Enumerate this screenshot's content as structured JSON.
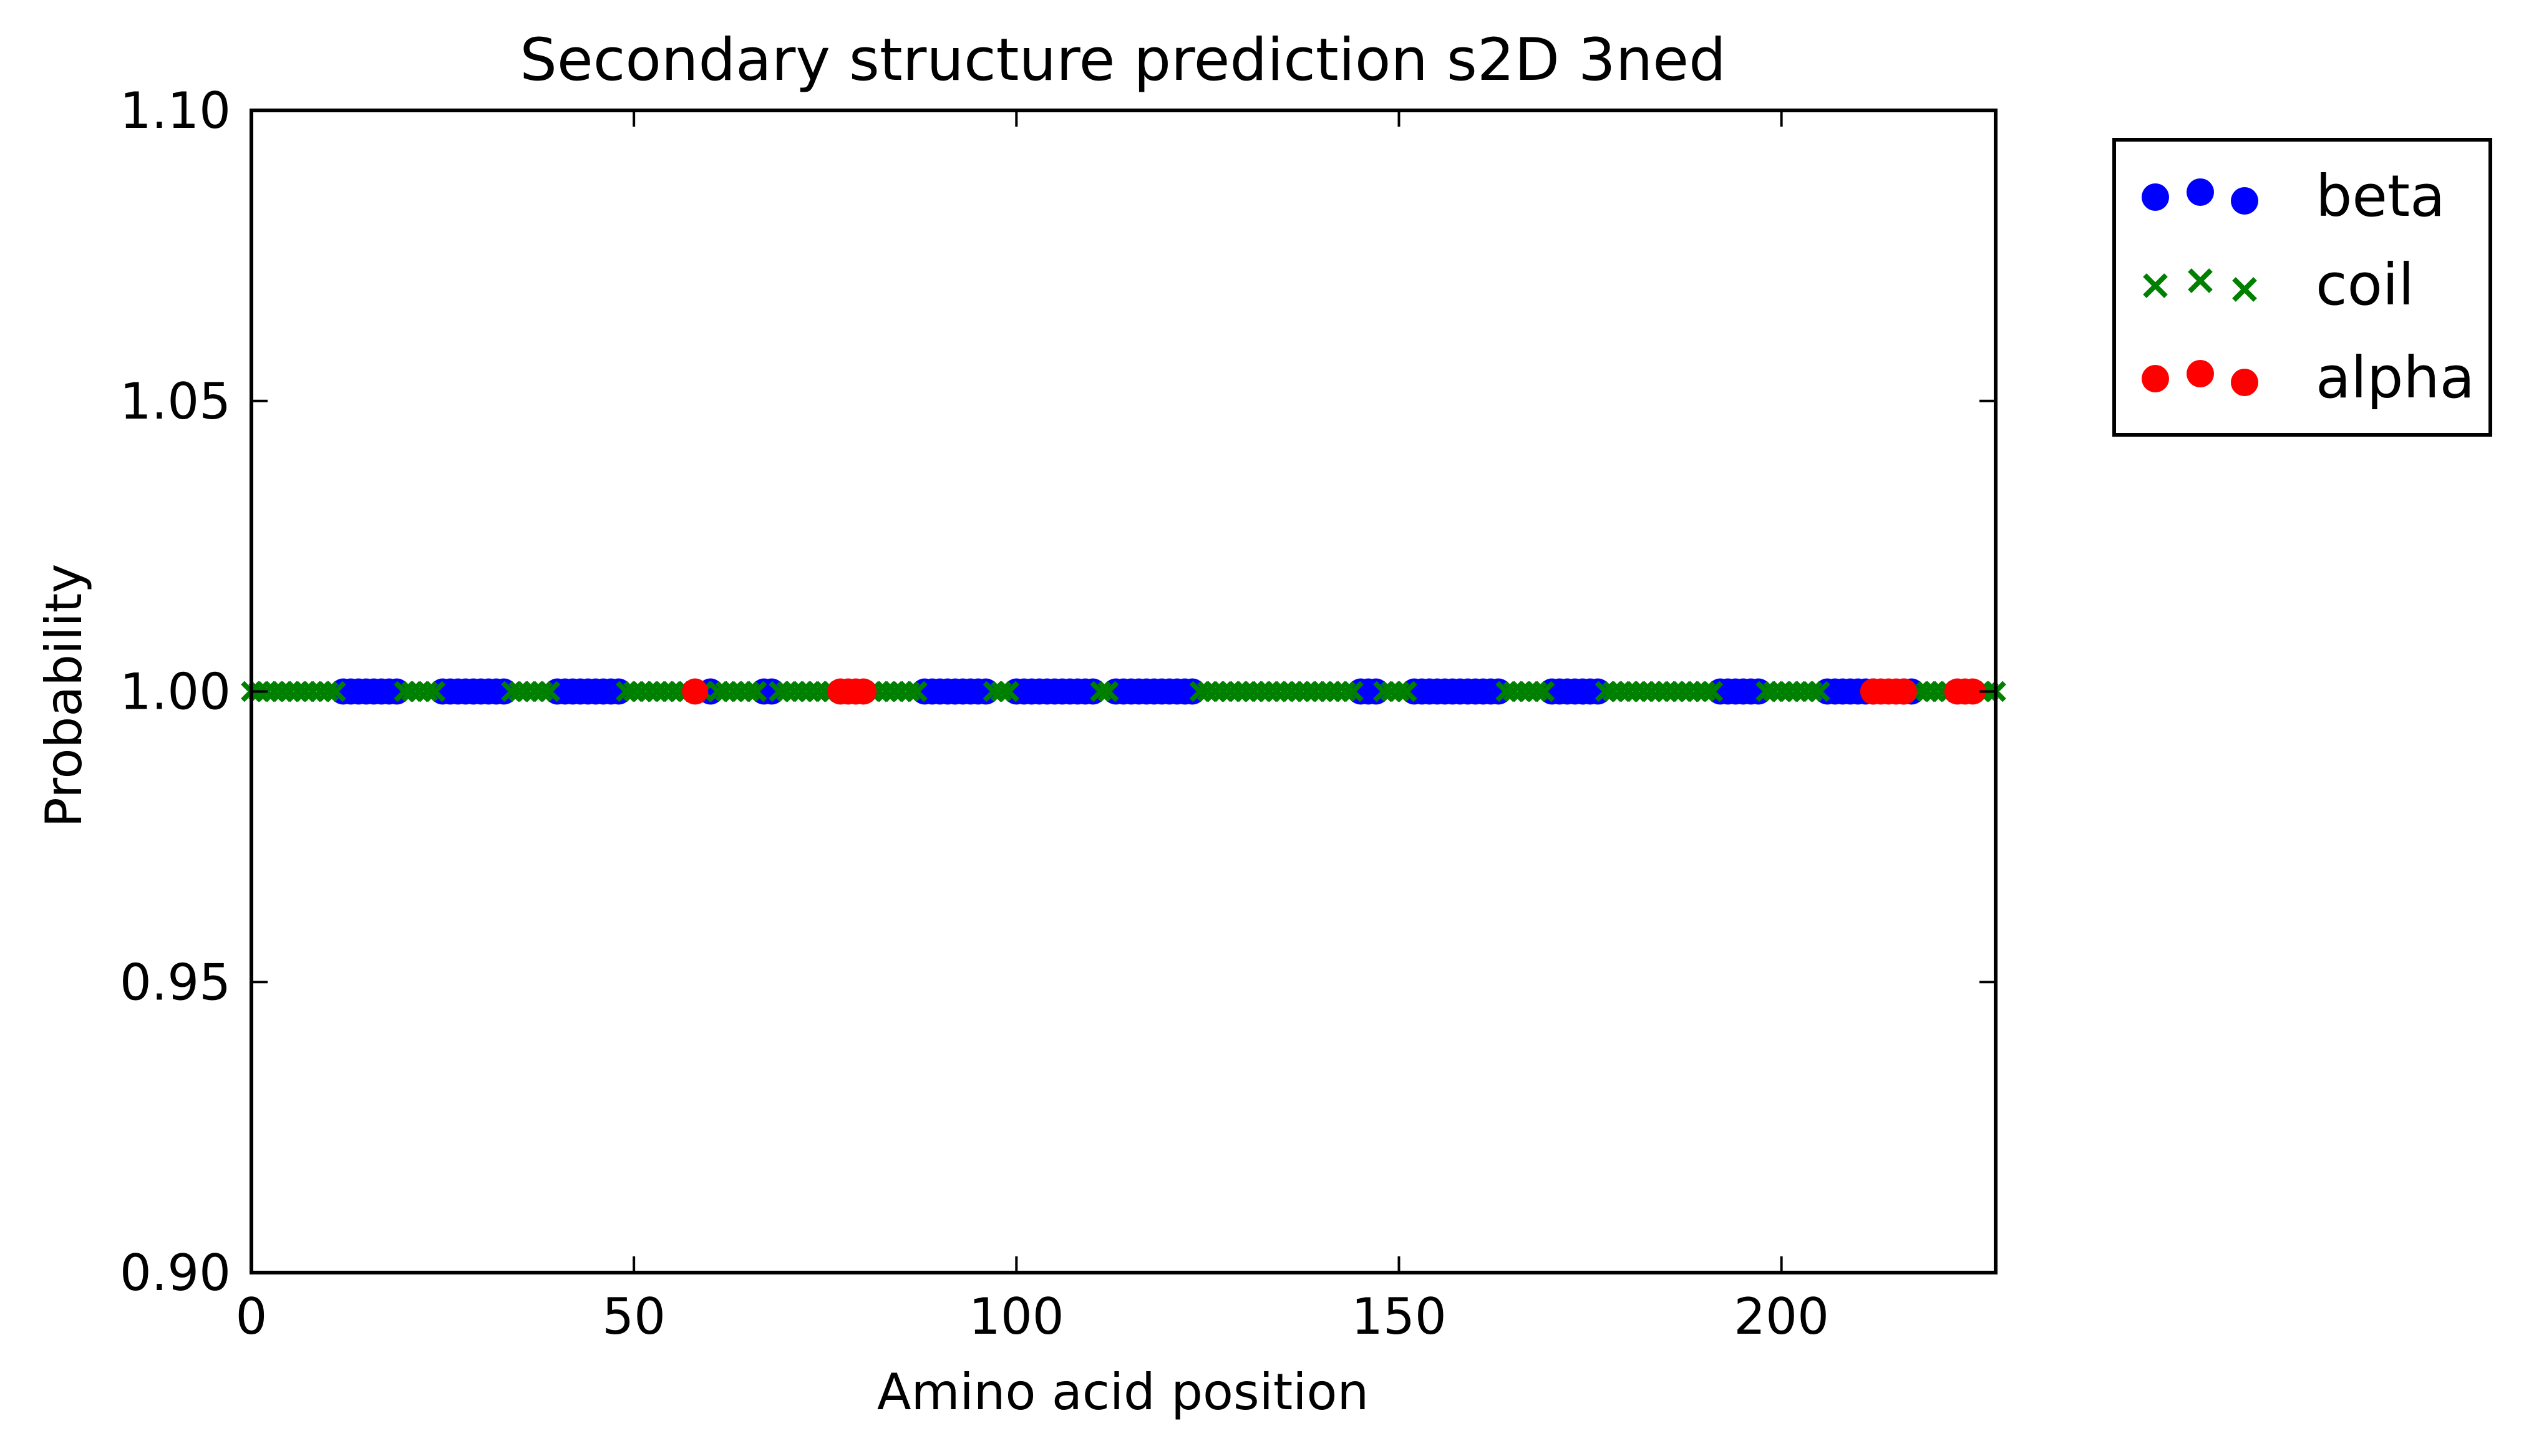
{
  "chart_data": {
    "type": "scatter",
    "title": "Secondary structure prediction s2D 3ned",
    "xlabel": "Amino acid position",
    "ylabel": "Probability",
    "xlim": [
      0,
      228
    ],
    "ylim": [
      0.9,
      1.1
    ],
    "x_ticks": [
      0,
      50,
      100,
      150,
      200
    ],
    "x_tick_labels": [
      "0",
      "50",
      "100",
      "150",
      "200"
    ],
    "y_ticks": [
      0.9,
      0.95,
      1.0,
      1.05,
      1.1
    ],
    "y_tick_labels": [
      "0.90",
      "0.95",
      "1.00",
      "1.05",
      "1.10"
    ],
    "grid": false,
    "legend_position": "outside-right-top",
    "series": [
      {
        "name": "beta",
        "marker": "circle",
        "color": "#0000ff",
        "x": [
          12,
          13,
          14,
          15,
          16,
          17,
          18,
          19,
          25,
          26,
          27,
          28,
          29,
          30,
          31,
          32,
          33,
          40,
          41,
          42,
          43,
          44,
          45,
          46,
          47,
          48,
          60,
          67,
          68,
          88,
          89,
          90,
          91,
          92,
          93,
          94,
          95,
          96,
          100,
          101,
          102,
          103,
          104,
          105,
          106,
          107,
          108,
          109,
          110,
          113,
          114,
          115,
          116,
          117,
          118,
          119,
          120,
          121,
          122,
          123,
          145,
          146,
          147,
          152,
          153,
          154,
          155,
          156,
          157,
          158,
          159,
          160,
          161,
          162,
          163,
          170,
          171,
          172,
          173,
          174,
          175,
          176,
          192,
          193,
          194,
          195,
          196,
          197,
          206,
          207,
          208,
          209,
          210,
          211,
          212,
          216,
          217
        ],
        "y": [
          1,
          1,
          1,
          1,
          1,
          1,
          1,
          1,
          1,
          1,
          1,
          1,
          1,
          1,
          1,
          1,
          1,
          1,
          1,
          1,
          1,
          1,
          1,
          1,
          1,
          1,
          1,
          1,
          1,
          1,
          1,
          1,
          1,
          1,
          1,
          1,
          1,
          1,
          1,
          1,
          1,
          1,
          1,
          1,
          1,
          1,
          1,
          1,
          1,
          1,
          1,
          1,
          1,
          1,
          1,
          1,
          1,
          1,
          1,
          1,
          1,
          1,
          1,
          1,
          1,
          1,
          1,
          1,
          1,
          1,
          1,
          1,
          1,
          1,
          1,
          1,
          1,
          1,
          1,
          1,
          1,
          1,
          1,
          1,
          1,
          1,
          1,
          1,
          1,
          1,
          1,
          1,
          1,
          1,
          1,
          1,
          1
        ]
      },
      {
        "name": "coil",
        "marker": "x",
        "color": "#008000",
        "x": [
          0,
          1,
          2,
          3,
          4,
          5,
          6,
          7,
          8,
          9,
          10,
          11,
          20,
          21,
          22,
          23,
          24,
          34,
          35,
          36,
          37,
          38,
          39,
          49,
          50,
          51,
          52,
          53,
          54,
          55,
          56,
          57,
          59,
          61,
          62,
          63,
          64,
          65,
          66,
          69,
          70,
          71,
          72,
          73,
          74,
          75,
          76,
          81,
          82,
          83,
          84,
          85,
          86,
          87,
          97,
          98,
          99,
          111,
          112,
          124,
          125,
          126,
          127,
          128,
          129,
          130,
          131,
          132,
          133,
          134,
          135,
          136,
          137,
          138,
          139,
          140,
          141,
          142,
          143,
          144,
          148,
          149,
          150,
          151,
          164,
          165,
          166,
          167,
          168,
          169,
          177,
          178,
          179,
          180,
          181,
          182,
          183,
          184,
          185,
          186,
          187,
          188,
          189,
          190,
          191,
          198,
          199,
          200,
          201,
          202,
          203,
          204,
          205,
          218,
          219,
          220,
          221,
          222,
          226,
          227,
          228
        ],
        "y": [
          1,
          1,
          1,
          1,
          1,
          1,
          1,
          1,
          1,
          1,
          1,
          1,
          1,
          1,
          1,
          1,
          1,
          1,
          1,
          1,
          1,
          1,
          1,
          1,
          1,
          1,
          1,
          1,
          1,
          1,
          1,
          1,
          1,
          1,
          1,
          1,
          1,
          1,
          1,
          1,
          1,
          1,
          1,
          1,
          1,
          1,
          1,
          1,
          1,
          1,
          1,
          1,
          1,
          1,
          1,
          1,
          1,
          1,
          1,
          1,
          1,
          1,
          1,
          1,
          1,
          1,
          1,
          1,
          1,
          1,
          1,
          1,
          1,
          1,
          1,
          1,
          1,
          1,
          1,
          1,
          1,
          1,
          1,
          1,
          1,
          1,
          1,
          1,
          1,
          1,
          1,
          1,
          1,
          1,
          1,
          1,
          1,
          1,
          1,
          1,
          1,
          1,
          1,
          1,
          1,
          1,
          1,
          1,
          1,
          1,
          1,
          1,
          1,
          1,
          1,
          1,
          1,
          1,
          1,
          1,
          1
        ]
      },
      {
        "name": "alpha",
        "marker": "circle",
        "color": "#ff0000",
        "x": [
          58,
          77,
          78,
          79,
          80,
          212,
          213,
          214,
          215,
          216,
          223,
          224,
          225
        ],
        "y": [
          1,
          1,
          1,
          1,
          1,
          1,
          1,
          1,
          1,
          1,
          1,
          1,
          1
        ]
      }
    ]
  }
}
